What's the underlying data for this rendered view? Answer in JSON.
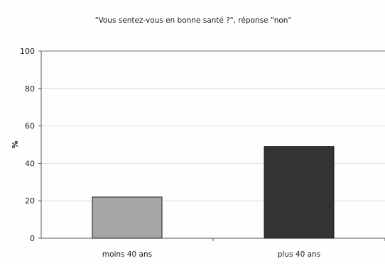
{
  "chart_data": {
    "type": "bar",
    "title": "\"Vous sentez-vous en bonne santé ?\", réponse \"non\"",
    "ylabel": "%",
    "xlabel": "",
    "categories": [
      "moins 40 ans",
      "plus 40 ans"
    ],
    "values": [
      22,
      49
    ],
    "ylim": [
      0,
      100
    ],
    "yticks": [
      "0",
      "20",
      "40",
      "60",
      "80",
      "100"
    ],
    "grid": true,
    "legend": "none",
    "colors": [
      "#a6a6a6",
      "#333333"
    ],
    "edge_color": "#1a1a1a"
  }
}
